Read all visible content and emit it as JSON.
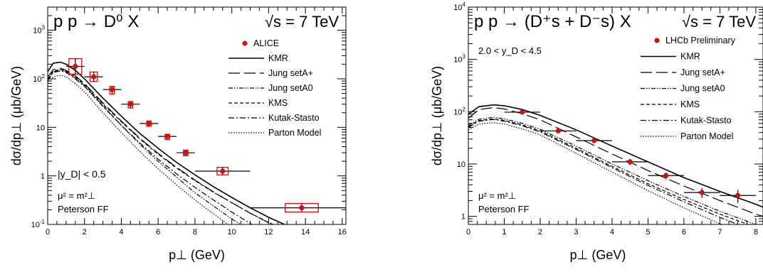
{
  "chart_data": [
    {
      "type": "line",
      "title": "p p → D⁰ X",
      "energy_label": "√s = 7 TeV",
      "annotations": [
        "|y_D| < 0.5",
        "μ² = m²⊥",
        "Peterson FF"
      ],
      "xlabel": "p⊥   (GeV)",
      "ylabel": "dσ/dp⊥   (μb/GeV)",
      "xlim": [
        0,
        16.2
      ],
      "ylim": [
        0.1,
        3000
      ],
      "y_scale": "log",
      "x_ticks": [
        0,
        2,
        4,
        6,
        8,
        10,
        12,
        14,
        16
      ],
      "x_tick_labels": [
        "0",
        "2",
        "4",
        "6",
        "8",
        "10",
        "12",
        "14",
        "16"
      ],
      "y_ticks": [
        0.1,
        1,
        10,
        100,
        1000
      ],
      "y_tick_labels": [
        "10⁻¹",
        "1",
        "10",
        "10²",
        "10³"
      ],
      "legend_placement": "top-right",
      "data_series": {
        "name": "ALICE",
        "color": "#cc1111",
        "x": [
          1.5,
          2.5,
          3.5,
          4.5,
          5.5,
          6.5,
          7.5,
          9.5,
          13.8
        ],
        "y": [
          180,
          110,
          60,
          30,
          12,
          6.5,
          3.0,
          1.25,
          0.22
        ],
        "xerr": [
          0.5,
          0.5,
          0.5,
          0.5,
          0.5,
          0.5,
          0.5,
          1.5,
          2.8
        ],
        "sys_box_width": [
          0.7,
          0.4,
          0.25,
          0.25,
          0.25,
          0.25,
          0.25,
          0.6,
          1.8
        ],
        "sys_box": [
          [
            125,
            260
          ],
          [
            88,
            138
          ],
          [
            48,
            70
          ],
          [
            25,
            34
          ],
          [
            10.5,
            13.5
          ],
          [
            5.6,
            7.2
          ],
          [
            2.6,
            3.4
          ],
          [
            1.05,
            1.5
          ],
          [
            0.18,
            0.27
          ]
        ]
      },
      "model_series": [
        {
          "name": "KMR",
          "dash": "solid",
          "x": [
            0,
            0.3,
            0.7,
            1,
            1.5,
            2,
            3,
            4,
            5,
            6,
            7,
            8,
            9,
            10,
            11,
            12,
            13,
            14,
            15
          ],
          "y": [
            140,
            210,
            220,
            200,
            150,
            100,
            40,
            17,
            7.5,
            3.7,
            1.9,
            1.05,
            0.6,
            0.36,
            0.22,
            0.14,
            0.095,
            0.065,
            0.045
          ]
        },
        {
          "name": "Jung setA+",
          "dash": "longdash",
          "x": [
            0,
            0.3,
            0.7,
            1,
            1.5,
            2,
            3,
            4,
            5,
            6,
            7,
            8,
            9,
            10,
            11,
            12,
            13,
            14,
            15
          ],
          "y": [
            110,
            155,
            165,
            150,
            115,
            80,
            32,
            13.5,
            6,
            2.9,
            1.5,
            0.82,
            0.47,
            0.28,
            0.17,
            0.108,
            0.072,
            0.05,
            0.035
          ]
        },
        {
          "name": "Jung setA0",
          "dash": "dashdotdot",
          "x": [
            0,
            0.3,
            0.7,
            1,
            1.5,
            2,
            3,
            4,
            5,
            6,
            7,
            8,
            9,
            10,
            11,
            12
          ],
          "y": [
            95,
            140,
            150,
            140,
            105,
            72,
            28,
            11,
            4.5,
            2,
            0.95,
            0.45,
            0.24,
            0.13,
            0.075,
            0.045
          ]
        },
        {
          "name": "KMS",
          "dash": "dashed",
          "x": [
            0,
            0.3,
            0.7,
            1,
            1.5,
            2,
            3,
            4,
            5,
            6,
            7,
            8,
            9,
            10,
            11,
            12,
            13,
            14,
            15
          ],
          "y": [
            100,
            145,
            155,
            145,
            110,
            76,
            30,
            13,
            5.8,
            2.8,
            1.45,
            0.8,
            0.46,
            0.28,
            0.17,
            0.11,
            0.073,
            0.05,
            0.035
          ]
        },
        {
          "name": "Kutak-Stasto",
          "dash": "dashdot",
          "x": [
            0,
            0.3,
            0.7,
            1,
            1.5,
            2,
            3,
            4,
            5,
            6,
            7,
            8,
            9,
            10,
            11,
            12,
            13
          ],
          "y": [
            90,
            135,
            145,
            135,
            100,
            70,
            27,
            11,
            4.8,
            2.2,
            1.1,
            0.58,
            0.32,
            0.18,
            0.105,
            0.065,
            0.042
          ]
        },
        {
          "name": "Parton Model",
          "dash": "dotted",
          "x": [
            0,
            0.3,
            0.7,
            1,
            1.5,
            2,
            3,
            4,
            5,
            6,
            7,
            8,
            9,
            10,
            11
          ],
          "y": [
            80,
            110,
            118,
            110,
            80,
            54,
            20,
            7.8,
            3.2,
            1.4,
            0.65,
            0.32,
            0.165,
            0.088,
            0.05
          ]
        }
      ]
    },
    {
      "type": "line",
      "title": "p p → (D⁺s + D⁻s) X",
      "energy_label": "√s = 7 TeV",
      "annotations": [
        "2.0 < y_D < 4.5",
        "μ² = m²⊥",
        "Peterson FF"
      ],
      "xlabel": "p⊥   (GeV)",
      "ylabel": "dσ/dp⊥   (μb/GeV)",
      "xlim": [
        0,
        8.2
      ],
      "ylim": [
        0.7,
        10000
      ],
      "y_scale": "log",
      "x_ticks": [
        0,
        1,
        2,
        3,
        4,
        5,
        6,
        7,
        8
      ],
      "x_tick_labels": [
        "0",
        "1",
        "2",
        "3",
        "4",
        "5",
        "6",
        "7",
        "8"
      ],
      "y_ticks": [
        1,
        10,
        100,
        1000,
        10000
      ],
      "y_tick_labels": [
        "1",
        "10",
        "10²",
        "10³",
        "10⁴"
      ],
      "legend_placement": "top-right",
      "data_series": {
        "name": "LHCb Preliminary",
        "color": "#cc1111",
        "x": [
          1.5,
          2.5,
          3.5,
          4.5,
          5.5,
          6.5,
          7.5
        ],
        "y": [
          98,
          43,
          28,
          11,
          6,
          2.85,
          2.5
        ],
        "xerr": [
          0.5,
          0.5,
          0.5,
          0.5,
          0.5,
          0.5,
          0.5
        ],
        "yerr": [
          [
            8,
            3.5,
            2.5,
            1.5,
            0.9,
            0.6,
            0.7
          ],
          [
            8,
            3.5,
            2.5,
            1.5,
            0.9,
            0.6,
            0.7
          ]
        ]
      },
      "model_series": [
        {
          "name": "KMR",
          "dash": "solid",
          "x": [
            0,
            0.3,
            0.7,
            1,
            1.5,
            2,
            3,
            4,
            5,
            6,
            7,
            8,
            8.2
          ],
          "y": [
            90,
            125,
            135,
            130,
            110,
            85,
            45,
            22,
            11,
            5.5,
            3,
            1.7,
            1.5
          ]
        },
        {
          "name": "Jung setA+",
          "dash": "longdash",
          "x": [
            0,
            0.3,
            0.7,
            1,
            1.5,
            2,
            3,
            4,
            5,
            6,
            7,
            8,
            8.2
          ],
          "y": [
            75,
            110,
            120,
            113,
            92,
            70,
            33,
            15.5,
            7.5,
            3.8,
            2,
            1.1,
            1
          ]
        },
        {
          "name": "Jung setA0",
          "dash": "dashdotdot",
          "x": [
            0,
            0.3,
            0.7,
            1,
            1.5,
            2,
            3,
            4,
            5,
            6,
            7,
            8,
            8.2
          ],
          "y": [
            55,
            72,
            78,
            73,
            60,
            46,
            22,
            10,
            4.8,
            2.4,
            1.25,
            0.7,
            0.62
          ]
        },
        {
          "name": "KMS",
          "dash": "dashed",
          "x": [
            0,
            0.3,
            0.7,
            1,
            1.5,
            2,
            3,
            4,
            5,
            6,
            7,
            8,
            8.2
          ],
          "y": [
            52,
            68,
            73,
            68,
            56,
            43,
            20,
            9,
            4.2,
            2.1,
            1.1,
            0.62,
            0.56
          ]
        },
        {
          "name": "Kutak-Stasto",
          "dash": "dashdot",
          "x": [
            0,
            0.3,
            0.7,
            1,
            1.5,
            2,
            3,
            4,
            5,
            6,
            7,
            8,
            8.2
          ],
          "y": [
            50,
            66,
            71,
            66,
            54,
            41,
            19,
            8.5,
            3.9,
            1.9,
            0.95,
            0.52,
            0.46
          ]
        },
        {
          "name": "Parton Model",
          "dash": "dotted",
          "x": [
            0,
            0.3,
            0.7,
            1,
            1.5,
            2,
            3,
            4,
            5,
            6,
            7,
            8
          ],
          "y": [
            45,
            58,
            62,
            58,
            47,
            36,
            16,
            7,
            3.1,
            1.45,
            0.72,
            0.4
          ]
        }
      ]
    }
  ]
}
